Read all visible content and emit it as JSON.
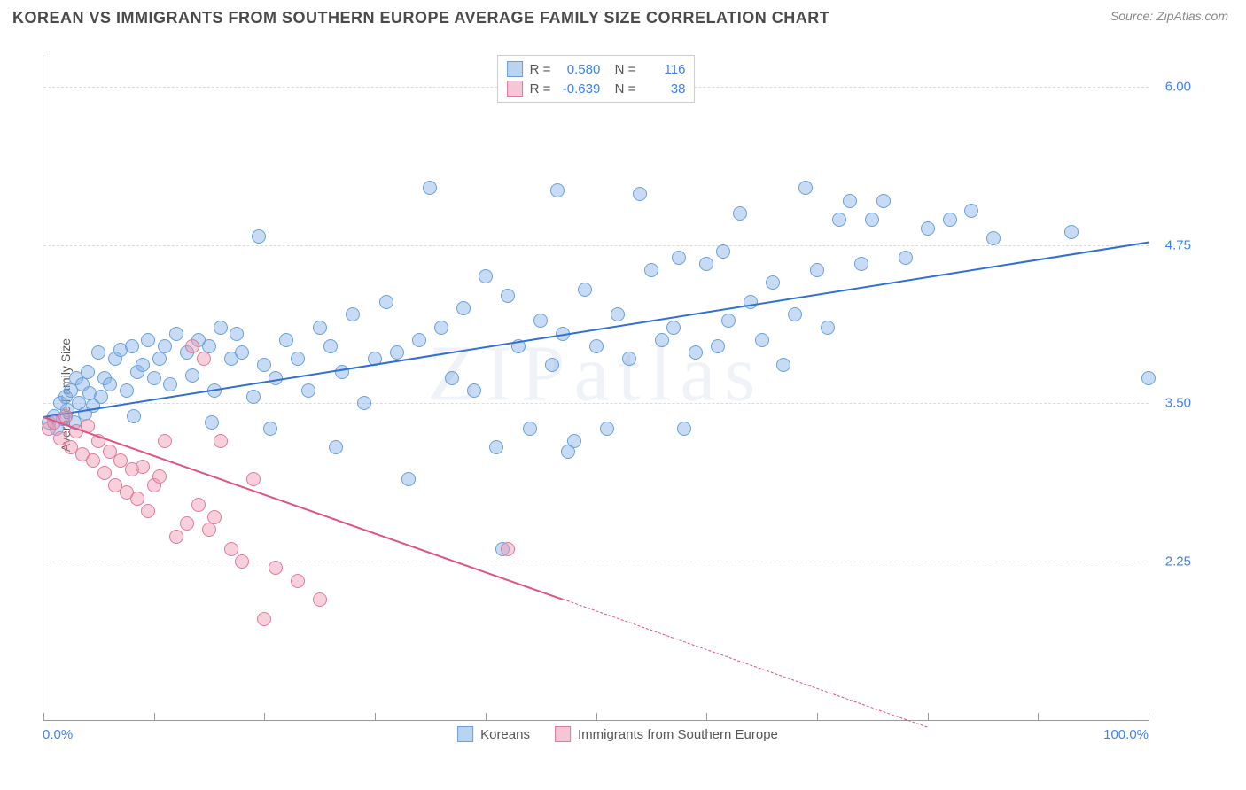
{
  "header": {
    "title": "KOREAN VS IMMIGRANTS FROM SOUTHERN EUROPE AVERAGE FAMILY SIZE CORRELATION CHART",
    "source": "Source: ZipAtlas.com"
  },
  "watermark": "ZIPatlas",
  "chart": {
    "type": "scatter",
    "y_axis_title": "Average Family Size",
    "x_min": 0.0,
    "x_max": 100.0,
    "y_min": 1.0,
    "y_max": 6.25,
    "x_tick_labels": [
      "0.0%",
      "100.0%"
    ],
    "x_tick_positions": [
      0,
      10,
      20,
      30,
      40,
      50,
      60,
      70,
      80,
      90,
      100
    ],
    "y_ticks": [
      2.25,
      3.5,
      4.75,
      6.0
    ],
    "grid_color": "#dddddd",
    "axis_color": "#999999",
    "background_color": "#ffffff",
    "tick_label_color": "#3b82f6",
    "marker_radius": 8,
    "series": [
      {
        "name": "Koreans",
        "color_fill": "rgba(130,175,230,0.45)",
        "color_stroke": "#6aa0db",
        "swatch_fill": "#b9d4f0",
        "swatch_stroke": "#6aa0db",
        "R": "0.580",
        "N": "116",
        "trend": {
          "x1": 0,
          "y1": 3.4,
          "x2": 100,
          "y2": 4.78,
          "color": "#2f6fd6",
          "width": 2,
          "dashed_from_x": null
        },
        "points": [
          [
            0.5,
            3.35
          ],
          [
            1,
            3.4
          ],
          [
            1.2,
            3.3
          ],
          [
            1.5,
            3.5
          ],
          [
            1.8,
            3.38
          ],
          [
            2,
            3.55
          ],
          [
            2.2,
            3.45
          ],
          [
            2.5,
            3.6
          ],
          [
            2.8,
            3.35
          ],
          [
            3,
            3.7
          ],
          [
            3.2,
            3.5
          ],
          [
            3.5,
            3.65
          ],
          [
            3.8,
            3.42
          ],
          [
            4,
            3.75
          ],
          [
            4.2,
            3.58
          ],
          [
            4.5,
            3.48
          ],
          [
            5,
            3.9
          ],
          [
            5.2,
            3.55
          ],
          [
            5.5,
            3.7
          ],
          [
            6,
            3.65
          ],
          [
            6.5,
            3.85
          ],
          [
            7,
            3.92
          ],
          [
            7.5,
            3.6
          ],
          [
            8,
            3.95
          ],
          [
            8.5,
            3.75
          ],
          [
            9,
            3.8
          ],
          [
            9.5,
            4.0
          ],
          [
            10,
            3.7
          ],
          [
            10.5,
            3.85
          ],
          [
            11,
            3.95
          ],
          [
            11.5,
            3.65
          ],
          [
            12,
            4.05
          ],
          [
            13,
            3.9
          ],
          [
            13.5,
            3.72
          ],
          [
            14,
            4.0
          ],
          [
            15,
            3.95
          ],
          [
            15.5,
            3.6
          ],
          [
            16,
            4.1
          ],
          [
            17,
            3.85
          ],
          [
            17.5,
            4.05
          ],
          [
            18,
            3.9
          ],
          [
            19,
            3.55
          ],
          [
            19.5,
            4.82
          ],
          [
            20,
            3.8
          ],
          [
            21,
            3.7
          ],
          [
            22,
            4.0
          ],
          [
            23,
            3.85
          ],
          [
            24,
            3.6
          ],
          [
            25,
            4.1
          ],
          [
            26,
            3.95
          ],
          [
            27,
            3.75
          ],
          [
            28,
            4.2
          ],
          [
            29,
            3.5
          ],
          [
            30,
            3.85
          ],
          [
            31,
            4.3
          ],
          [
            32,
            3.9
          ],
          [
            33,
            2.9
          ],
          [
            34,
            4.0
          ],
          [
            35,
            5.2
          ],
          [
            36,
            4.1
          ],
          [
            37,
            3.7
          ],
          [
            38,
            4.25
          ],
          [
            39,
            3.6
          ],
          [
            40,
            4.5
          ],
          [
            41,
            3.15
          ],
          [
            42,
            4.35
          ],
          [
            43,
            3.95
          ],
          [
            44,
            3.3
          ],
          [
            45,
            4.15
          ],
          [
            46.5,
            5.18
          ],
          [
            46,
            3.8
          ],
          [
            47,
            4.05
          ],
          [
            48,
            3.2
          ],
          [
            49,
            4.4
          ],
          [
            50,
            3.95
          ],
          [
            51,
            3.3
          ],
          [
            52,
            4.2
          ],
          [
            53,
            3.85
          ],
          [
            54,
            5.15
          ],
          [
            55,
            4.55
          ],
          [
            56,
            4.0
          ],
          [
            57,
            4.1
          ],
          [
            57.5,
            4.65
          ],
          [
            58,
            3.3
          ],
          [
            59,
            3.9
          ],
          [
            60,
            4.6
          ],
          [
            61,
            3.95
          ],
          [
            61.5,
            4.7
          ],
          [
            62,
            4.15
          ],
          [
            63,
            5.0
          ],
          [
            64,
            4.3
          ],
          [
            65,
            4.0
          ],
          [
            66,
            4.45
          ],
          [
            67,
            3.8
          ],
          [
            68,
            4.2
          ],
          [
            69,
            5.2
          ],
          [
            70,
            4.55
          ],
          [
            71,
            4.1
          ],
          [
            72,
            4.95
          ],
          [
            73,
            5.1
          ],
          [
            74,
            4.6
          ],
          [
            75,
            4.95
          ],
          [
            76,
            5.1
          ],
          [
            78,
            4.65
          ],
          [
            80,
            4.88
          ],
          [
            82,
            4.95
          ],
          [
            84,
            5.02
          ],
          [
            86,
            4.8
          ],
          [
            93,
            4.85
          ],
          [
            100,
            3.7
          ],
          [
            47.5,
            3.12
          ],
          [
            41.5,
            2.35
          ],
          [
            20.5,
            3.3
          ],
          [
            26.5,
            3.15
          ],
          [
            15.2,
            3.35
          ],
          [
            8.2,
            3.4
          ]
        ]
      },
      {
        "name": "Immigrants from Southern Europe",
        "color_fill": "rgba(240,150,175,0.45)",
        "color_stroke": "#e07a9a",
        "swatch_fill": "#f5c6d5",
        "swatch_stroke": "#e07a9a",
        "R": "-0.639",
        "N": "38",
        "trend": {
          "x1": 0,
          "y1": 3.4,
          "x2": 80,
          "y2": 0.95,
          "color": "#e0547e",
          "width": 2,
          "dashed_from_x": 47
        },
        "points": [
          [
            0.5,
            3.3
          ],
          [
            1,
            3.35
          ],
          [
            1.5,
            3.22
          ],
          [
            2,
            3.4
          ],
          [
            2.5,
            3.15
          ],
          [
            3,
            3.28
          ],
          [
            3.5,
            3.1
          ],
          [
            4,
            3.32
          ],
          [
            4.5,
            3.05
          ],
          [
            5,
            3.2
          ],
          [
            5.5,
            2.95
          ],
          [
            6,
            3.12
          ],
          [
            6.5,
            2.85
          ],
          [
            7,
            3.05
          ],
          [
            7.5,
            2.8
          ],
          [
            8,
            2.98
          ],
          [
            8.5,
            2.75
          ],
          [
            9,
            3.0
          ],
          [
            9.5,
            2.65
          ],
          [
            10,
            2.85
          ],
          [
            10.5,
            2.92
          ],
          [
            11,
            3.2
          ],
          [
            12,
            2.45
          ],
          [
            13,
            2.55
          ],
          [
            13.5,
            3.95
          ],
          [
            14,
            2.7
          ],
          [
            14.5,
            3.85
          ],
          [
            15,
            2.5
          ],
          [
            15.5,
            2.6
          ],
          [
            16,
            3.2
          ],
          [
            17,
            2.35
          ],
          [
            18,
            2.25
          ],
          [
            19,
            2.9
          ],
          [
            20,
            1.8
          ],
          [
            21,
            2.2
          ],
          [
            23,
            2.1
          ],
          [
            25,
            1.95
          ],
          [
            42,
            2.35
          ]
        ]
      }
    ]
  },
  "bottom_legend": [
    {
      "label": "Koreans",
      "fill": "#b9d4f0",
      "stroke": "#6aa0db"
    },
    {
      "label": "Immigrants from Southern Europe",
      "fill": "#f5c6d5",
      "stroke": "#e07a9a"
    }
  ]
}
